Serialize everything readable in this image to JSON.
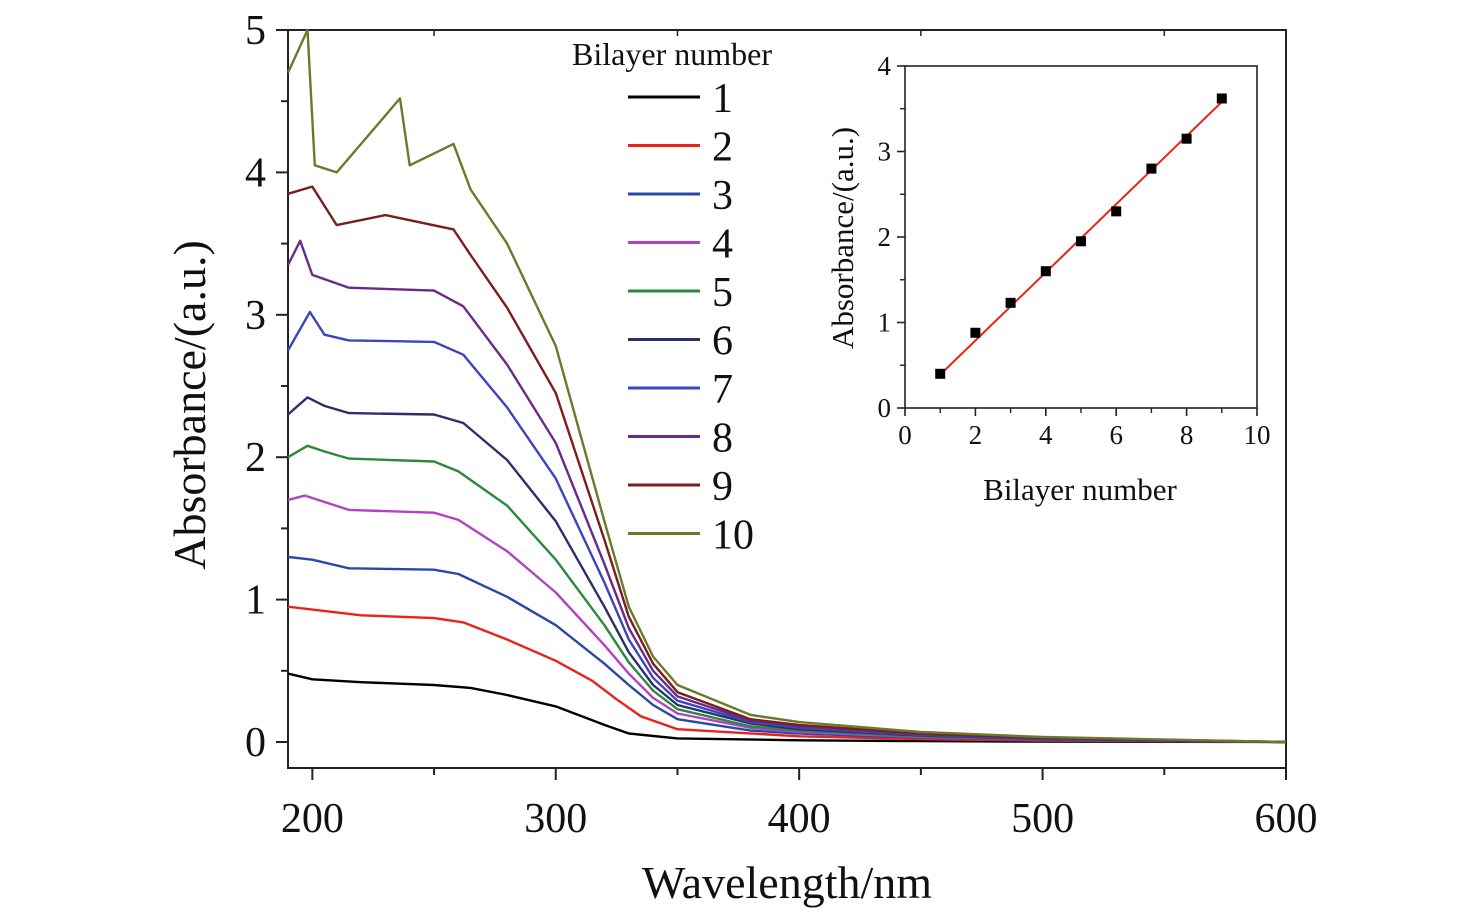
{
  "chart_data": [
    {
      "type": "line",
      "xlabel": "Wavelength/nm",
      "ylabel": "Absorbance/(a.u.)",
      "xlim": [
        190,
        600
      ],
      "ylim": [
        0,
        5
      ],
      "xticks": [
        "200",
        "300",
        "400",
        "500",
        "600"
      ],
      "yticks": [
        "0",
        "1",
        "2",
        "3",
        "4",
        "5"
      ],
      "grid": false,
      "legend": {
        "title": "Bilayer number",
        "placement": "top-center"
      },
      "series": [
        {
          "name": "1",
          "color": "#000000",
          "values": [
            [
              190,
              0.48
            ],
            [
              200,
              0.44
            ],
            [
              220,
              0.42
            ],
            [
              250,
              0.4
            ],
            [
              265,
              0.38
            ],
            [
              280,
              0.33
            ],
            [
              300,
              0.25
            ],
            [
              320,
              0.12
            ],
            [
              330,
              0.06
            ],
            [
              350,
              0.025
            ],
            [
              400,
              0.012
            ],
            [
              450,
              0.006
            ],
            [
              500,
              0.003
            ],
            [
              600,
              0.0
            ]
          ]
        },
        {
          "name": "2",
          "color": "#e8231a",
          "values": [
            [
              190,
              0.95
            ],
            [
              200,
              0.93
            ],
            [
              220,
              0.89
            ],
            [
              250,
              0.87
            ],
            [
              262,
              0.84
            ],
            [
              280,
              0.72
            ],
            [
              300,
              0.57
            ],
            [
              315,
              0.43
            ],
            [
              325,
              0.3
            ],
            [
              335,
              0.18
            ],
            [
              350,
              0.09
            ],
            [
              400,
              0.04
            ],
            [
              450,
              0.02
            ],
            [
              500,
              0.01
            ],
            [
              600,
              0.0
            ]
          ]
        },
        {
          "name": "3",
          "color": "#2b48a8",
          "values": [
            [
              190,
              1.3
            ],
            [
              200,
              1.28
            ],
            [
              215,
              1.22
            ],
            [
              250,
              1.21
            ],
            [
              260,
              1.18
            ],
            [
              280,
              1.02
            ],
            [
              300,
              0.82
            ],
            [
              320,
              0.55
            ],
            [
              330,
              0.4
            ],
            [
              340,
              0.26
            ],
            [
              350,
              0.16
            ],
            [
              380,
              0.08
            ],
            [
              400,
              0.06
            ],
            [
              450,
              0.03
            ],
            [
              500,
              0.015
            ],
            [
              600,
              0.0
            ]
          ]
        },
        {
          "name": "4",
          "color": "#b540c8",
          "values": [
            [
              190,
              1.7
            ],
            [
              197,
              1.73
            ],
            [
              215,
              1.63
            ],
            [
              250,
              1.61
            ],
            [
              260,
              1.56
            ],
            [
              280,
              1.34
            ],
            [
              300,
              1.05
            ],
            [
              320,
              0.68
            ],
            [
              330,
              0.48
            ],
            [
              340,
              0.31
            ],
            [
              350,
              0.2
            ],
            [
              380,
              0.1
            ],
            [
              400,
              0.07
            ],
            [
              450,
              0.035
            ],
            [
              500,
              0.018
            ],
            [
              600,
              0.0
            ]
          ]
        },
        {
          "name": "5",
          "color": "#2a8a3a",
          "values": [
            [
              190,
              2.0
            ],
            [
              198,
              2.08
            ],
            [
              205,
              2.04
            ],
            [
              215,
              1.99
            ],
            [
              250,
              1.97
            ],
            [
              260,
              1.9
            ],
            [
              280,
              1.66
            ],
            [
              300,
              1.28
            ],
            [
              320,
              0.82
            ],
            [
              330,
              0.56
            ],
            [
              340,
              0.36
            ],
            [
              350,
              0.23
            ],
            [
              380,
              0.11
            ],
            [
              400,
              0.08
            ],
            [
              450,
              0.04
            ],
            [
              500,
              0.02
            ],
            [
              600,
              0.0
            ]
          ]
        },
        {
          "name": "6",
          "color": "#2b2f6a",
          "values": [
            [
              190,
              2.3
            ],
            [
              198,
              2.42
            ],
            [
              205,
              2.36
            ],
            [
              215,
              2.31
            ],
            [
              250,
              2.3
            ],
            [
              262,
              2.24
            ],
            [
              280,
              1.98
            ],
            [
              300,
              1.55
            ],
            [
              320,
              0.95
            ],
            [
              330,
              0.63
            ],
            [
              340,
              0.4
            ],
            [
              350,
              0.26
            ],
            [
              380,
              0.13
            ],
            [
              400,
              0.09
            ],
            [
              450,
              0.045
            ],
            [
              500,
              0.022
            ],
            [
              600,
              0.0
            ]
          ]
        },
        {
          "name": "7",
          "color": "#3c45c0",
          "values": [
            [
              190,
              2.75
            ],
            [
              199,
              3.02
            ],
            [
              205,
              2.86
            ],
            [
              215,
              2.82
            ],
            [
              250,
              2.81
            ],
            [
              262,
              2.72
            ],
            [
              280,
              2.35
            ],
            [
              300,
              1.85
            ],
            [
              320,
              1.12
            ],
            [
              330,
              0.72
            ],
            [
              340,
              0.45
            ],
            [
              350,
              0.29
            ],
            [
              380,
              0.14
            ],
            [
              400,
              0.1
            ],
            [
              450,
              0.05
            ],
            [
              500,
              0.025
            ],
            [
              600,
              0.0
            ]
          ]
        },
        {
          "name": "8",
          "color": "#6a2a8a",
          "values": [
            [
              190,
              3.35
            ],
            [
              195,
              3.52
            ],
            [
              200,
              3.28
            ],
            [
              215,
              3.19
            ],
            [
              250,
              3.17
            ],
            [
              262,
              3.06
            ],
            [
              280,
              2.65
            ],
            [
              300,
              2.1
            ],
            [
              320,
              1.25
            ],
            [
              330,
              0.8
            ],
            [
              340,
              0.5
            ],
            [
              350,
              0.32
            ],
            [
              380,
              0.15
            ],
            [
              400,
              0.11
            ],
            [
              450,
              0.055
            ],
            [
              500,
              0.028
            ],
            [
              600,
              0.0
            ]
          ]
        },
        {
          "name": "9",
          "color": "#7a1e1e",
          "values": [
            [
              190,
              3.85
            ],
            [
              200,
              3.9
            ],
            [
              210,
              3.63
            ],
            [
              230,
              3.7
            ],
            [
              258,
              3.6
            ],
            [
              265,
              3.42
            ],
            [
              280,
              3.05
            ],
            [
              300,
              2.45
            ],
            [
              320,
              1.42
            ],
            [
              330,
              0.88
            ],
            [
              340,
              0.55
            ],
            [
              350,
              0.35
            ],
            [
              380,
              0.16
            ],
            [
              400,
              0.12
            ],
            [
              450,
              0.06
            ],
            [
              500,
              0.03
            ],
            [
              600,
              0.0
            ]
          ]
        },
        {
          "name": "10",
          "color": "#6b7a2a",
          "values": [
            [
              190,
              4.7
            ],
            [
              198,
              5.0
            ],
            [
              201,
              4.05
            ],
            [
              210,
              4.0
            ],
            [
              236,
              4.52
            ],
            [
              240,
              4.05
            ],
            [
              258,
              4.2
            ],
            [
              265,
              3.88
            ],
            [
              280,
              3.5
            ],
            [
              300,
              2.78
            ],
            [
              320,
              1.55
            ],
            [
              330,
              0.95
            ],
            [
              340,
              0.6
            ],
            [
              350,
              0.4
            ],
            [
              380,
              0.19
            ],
            [
              400,
              0.14
            ],
            [
              450,
              0.07
            ],
            [
              500,
              0.035
            ],
            [
              600,
              0.0
            ]
          ]
        }
      ]
    },
    {
      "type": "scatter",
      "xlabel": "Bilayer number",
      "ylabel": "Absorbance/(a.u.)",
      "xlim": [
        0,
        10
      ],
      "ylim": [
        0,
        4
      ],
      "xticks": [
        "0",
        "2",
        "4",
        "6",
        "8",
        "10"
      ],
      "yticks": [
        "0",
        "1",
        "2",
        "3",
        "4"
      ],
      "grid": false,
      "fit_line_color": "#e8231a",
      "marker_color": "#000000",
      "points": [
        {
          "x": 1,
          "y": 0.4
        },
        {
          "x": 2,
          "y": 0.88
        },
        {
          "x": 3,
          "y": 1.23
        },
        {
          "x": 4,
          "y": 1.6
        },
        {
          "x": 5,
          "y": 1.95
        },
        {
          "x": 6,
          "y": 2.3
        },
        {
          "x": 7,
          "y": 2.8
        },
        {
          "x": 8,
          "y": 3.15
        },
        {
          "x": 9,
          "y": 3.62
        }
      ],
      "fit": {
        "x0": 1,
        "y0": 0.39,
        "x1": 9,
        "y1": 3.58
      }
    }
  ]
}
